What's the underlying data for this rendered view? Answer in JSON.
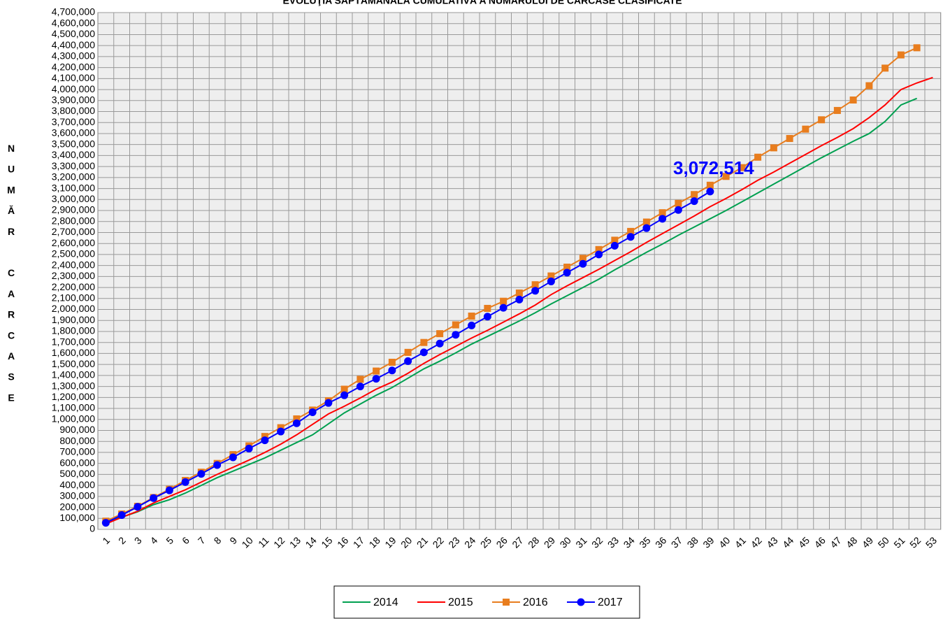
{
  "chart_data": {
    "type": "line",
    "title": "EVOLUŢIA SĂPTĂMÂNALĂ CUMULATIVĂ A NUMĂRULUI DE CARCASE CLASIFICATE",
    "ylabel": "NUMĂR CARCASE",
    "categories": [
      "1",
      "2",
      "3",
      "4",
      "5",
      "6",
      "7",
      "8",
      "9",
      "10",
      "11",
      "12",
      "13",
      "14",
      "15",
      "16",
      "17",
      "18",
      "19",
      "20",
      "21",
      "22",
      "23",
      "24",
      "25",
      "26",
      "27",
      "28",
      "29",
      "30",
      "31",
      "32",
      "33",
      "34",
      "35",
      "36",
      "37",
      "38",
      "39",
      "40",
      "41",
      "42",
      "43",
      "44",
      "45",
      "46",
      "47",
      "48",
      "49",
      "50",
      "51",
      "52",
      "53"
    ],
    "series": [
      {
        "name": "2014",
        "color": "#00a050",
        "marker": "none",
        "values": [
          70000,
          110000,
          160000,
          225000,
          270000,
          330000,
          400000,
          470000,
          530000,
          590000,
          650000,
          720000,
          790000,
          860000,
          960000,
          1060000,
          1140000,
          1220000,
          1290000,
          1375000,
          1460000,
          1530000,
          1605000,
          1685000,
          1755000,
          1825000,
          1895000,
          1970000,
          2050000,
          2125000,
          2200000,
          2275000,
          2360000,
          2440000,
          2520000,
          2595000,
          2675000,
          2750000,
          2825000,
          2900000,
          2980000,
          3060000,
          3140000,
          3220000,
          3300000,
          3380000,
          3455000,
          3530000,
          3600000,
          3710000,
          3860000,
          3920000,
          null
        ]
      },
      {
        "name": "2015",
        "color": "#ff0000",
        "marker": "none",
        "values": [
          50000,
          110000,
          165000,
          240000,
          300000,
          360000,
          430000,
          500000,
          565000,
          630000,
          700000,
          775000,
          860000,
          955000,
          1050000,
          1120000,
          1195000,
          1275000,
          1340000,
          1420000,
          1510000,
          1590000,
          1665000,
          1740000,
          1810000,
          1885000,
          1960000,
          2040000,
          2135000,
          2215000,
          2290000,
          2365000,
          2445000,
          2525000,
          2610000,
          2690000,
          2770000,
          2850000,
          2935000,
          3010000,
          3090000,
          3175000,
          3250000,
          3330000,
          3410000,
          3490000,
          3565000,
          3645000,
          3745000,
          3860000,
          4000000,
          4060000,
          4110000
        ]
      },
      {
        "name": "2016",
        "color": "#e87d1e",
        "marker": "square",
        "values": [
          75000,
          140000,
          210000,
          290000,
          365000,
          445000,
          520000,
          600000,
          680000,
          760000,
          845000,
          925000,
          1005000,
          1085000,
          1170000,
          1275000,
          1365000,
          1440000,
          1520000,
          1610000,
          1700000,
          1780000,
          1860000,
          1940000,
          2010000,
          2075000,
          2150000,
          2225000,
          2305000,
          2385000,
          2465000,
          2545000,
          2630000,
          2710000,
          2795000,
          2880000,
          2965000,
          3045000,
          3130000,
          3210000,
          3290000,
          3385000,
          3470000,
          3555000,
          3640000,
          3725000,
          3810000,
          3905000,
          4035000,
          4195000,
          4315000,
          4380000,
          null
        ]
      },
      {
        "name": "2017",
        "color": "#0000ff",
        "marker": "circle",
        "values": [
          60000,
          130000,
          205000,
          285000,
          355000,
          430000,
          505000,
          585000,
          655000,
          735000,
          810000,
          890000,
          965000,
          1065000,
          1150000,
          1220000,
          1300000,
          1370000,
          1445000,
          1530000,
          1610000,
          1690000,
          1770000,
          1855000,
          1935000,
          2015000,
          2090000,
          2170000,
          2255000,
          2335000,
          2415000,
          2500000,
          2580000,
          2660000,
          2740000,
          2825000,
          2905000,
          2985000,
          3072514,
          null,
          null,
          null,
          null,
          null,
          null,
          null,
          null,
          null,
          null,
          null,
          null,
          null,
          null
        ],
        "value_labels": [
          null,
          null,
          null,
          null,
          null,
          null,
          null,
          null,
          null,
          null,
          null,
          null,
          null,
          null,
          null,
          null,
          null,
          null,
          null,
          null,
          null,
          null,
          null,
          null,
          null,
          null,
          null,
          null,
          null,
          null,
          null,
          null,
          null,
          null,
          null,
          null,
          null,
          null,
          "3,072,514",
          null,
          null,
          null,
          null,
          null,
          null,
          null,
          null,
          null,
          null,
          null,
          null,
          null,
          null
        ]
      }
    ],
    "ylim": [
      0,
      4700000
    ],
    "yticks": [
      0,
      {
        "value": 100000,
        "label": "100,000"
      },
      {
        "value": 200000,
        "label": "200,000"
      },
      {
        "value": 300000,
        "label": "300,000"
      },
      {
        "value": 400000,
        "label": "400,000"
      },
      {
        "value": 500000,
        "label": "500,000"
      },
      {
        "value": 600000,
        "label": "600,000"
      },
      {
        "value": 700000,
        "label": "700,000"
      },
      {
        "value": 800000,
        "label": "800,000"
      },
      {
        "value": 900000,
        "label": "900,000"
      },
      {
        "value": 1000000,
        "label": "1,000,000"
      },
      {
        "value": 1100000,
        "label": "1,100,000"
      },
      {
        "value": 1200000,
        "label": "1,200,000"
      },
      {
        "value": 1300000,
        "label": "1,300,000"
      },
      {
        "value": 1400000,
        "label": "1,400,000"
      },
      {
        "value": 1500000,
        "label": "1,500,000"
      },
      {
        "value": 1600000,
        "label": "1,600,000"
      },
      {
        "value": 1700000,
        "label": "1,700,000"
      },
      {
        "value": 1800000,
        "label": "1,800,000"
      },
      {
        "value": 1900000,
        "label": "1,900,000"
      },
      {
        "value": 2000000,
        "label": "2,000,000"
      },
      {
        "value": 2100000,
        "label": "2,100,000"
      },
      {
        "value": 2200000,
        "label": "2,200,000"
      },
      {
        "value": 2300000,
        "label": "2,300,000"
      },
      {
        "value": 2400000,
        "label": "2,400,000"
      },
      {
        "value": 2500000,
        "label": "2,500,000"
      },
      {
        "value": 2600000,
        "label": "2,600,000"
      },
      {
        "value": 2700000,
        "label": "2,700,000"
      },
      {
        "value": 2800000,
        "label": "2,800,000"
      },
      {
        "value": 2900000,
        "label": "2,900,000"
      },
      {
        "value": 3000000,
        "label": "3,000,000"
      },
      {
        "value": 3100000,
        "label": "3,100,000"
      },
      {
        "value": 3200000,
        "label": "3,200,000"
      },
      {
        "value": 3300000,
        "label": "3,300,000"
      },
      {
        "value": 3400000,
        "label": "3,400,000"
      },
      {
        "value": 3500000,
        "label": "3,500,000"
      },
      {
        "value": 3600000,
        "label": "3,600,000"
      },
      {
        "value": 3700000,
        "label": "3,700,000"
      },
      {
        "value": 3800000,
        "label": "3,800,000"
      },
      {
        "value": 3900000,
        "label": "3,900,000"
      },
      {
        "value": 4000000,
        "label": "4,000,000"
      },
      {
        "value": 4100000,
        "label": "4,100,000"
      },
      {
        "value": 4200000,
        "label": "4,200,000"
      },
      {
        "value": 4300000,
        "label": "4,300,000"
      },
      {
        "value": 4400000,
        "label": "4,400,000"
      },
      {
        "value": 4500000,
        "label": "4,500,000"
      },
      {
        "value": 4600000,
        "label": "4,600,000"
      },
      {
        "value": 4700000,
        "label": "4,700,000"
      }
    ],
    "grid": true,
    "legend": "bottom"
  }
}
